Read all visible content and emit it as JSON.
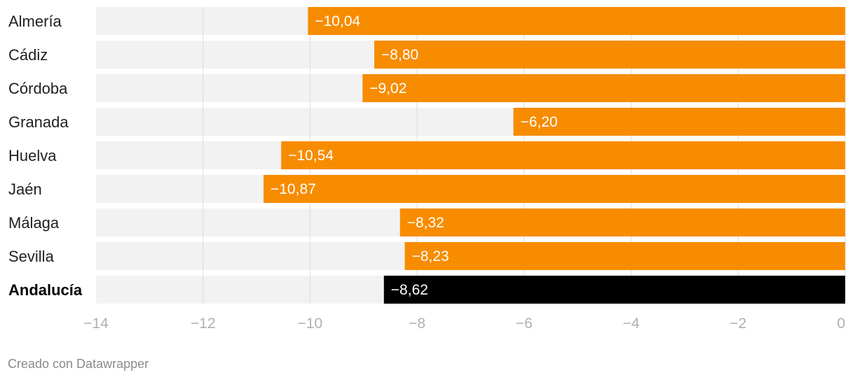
{
  "chart_data": {
    "type": "bar",
    "orientation": "horizontal",
    "categories": [
      "Almería",
      "Cádiz",
      "Córdoba",
      "Granada",
      "Huelva",
      "Jaén",
      "Málaga",
      "Sevilla",
      "Andalucía"
    ],
    "values": [
      -10.04,
      -8.8,
      -9.02,
      -6.2,
      -10.54,
      -10.87,
      -8.32,
      -8.23,
      -8.62
    ],
    "value_labels": [
      "−10,04",
      "−8,80",
      "−9,02",
      "−6,20",
      "−10,54",
      "−10,87",
      "−8,32",
      "−8,23",
      "−8,62"
    ],
    "highlight_category": "Andalucía",
    "xlim": [
      -14,
      0
    ],
    "x_ticks": [
      -14,
      -12,
      -10,
      -8,
      -6,
      -4,
      -2,
      0
    ],
    "x_tick_labels": [
      "−14",
      "−12",
      "−10",
      "−8",
      "−6",
      "−4",
      "−2",
      "0"
    ],
    "grid": true,
    "colors": {
      "bar": "#f78c00",
      "highlight_bar": "#000000",
      "background_track": "#f2f2f2",
      "grid": "#dcdcdc",
      "tick_text": "#b0b0b0"
    }
  },
  "footer": {
    "credit": "Creado con Datawrapper"
  }
}
